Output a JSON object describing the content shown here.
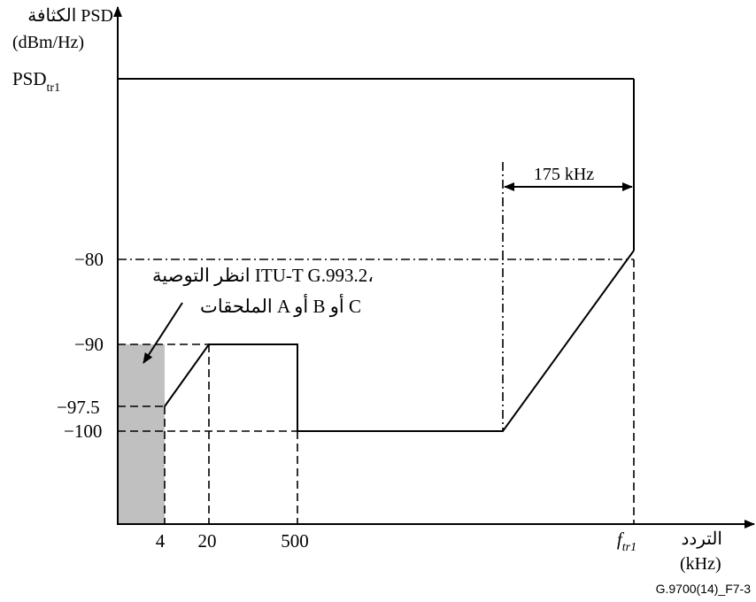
{
  "y_axis": {
    "label_line1": "الكثافة PSD",
    "label_line2": "(dBm/Hz)",
    "level_top_main": "PSD",
    "level_top_sub": "tr1",
    "levels": [
      "−80",
      "−90",
      "−97.5",
      "−100"
    ]
  },
  "x_axis": {
    "label_line1": "التردد",
    "label_line2": "(kHz)",
    "ticks": [
      "4",
      "20",
      "500"
    ],
    "ftr_main": "f",
    "ftr_sub": "tr1"
  },
  "annotation": {
    "width_label": "175 kHz",
    "ref_line1": "انظر التوصية ITU-T G.993.2،",
    "ref_line2": "الملحقات A أو B أو C"
  },
  "figure_id": "G.9700(14)_F7-3",
  "colors": {
    "line": "#000000",
    "shade": "#c0c0c0"
  }
}
